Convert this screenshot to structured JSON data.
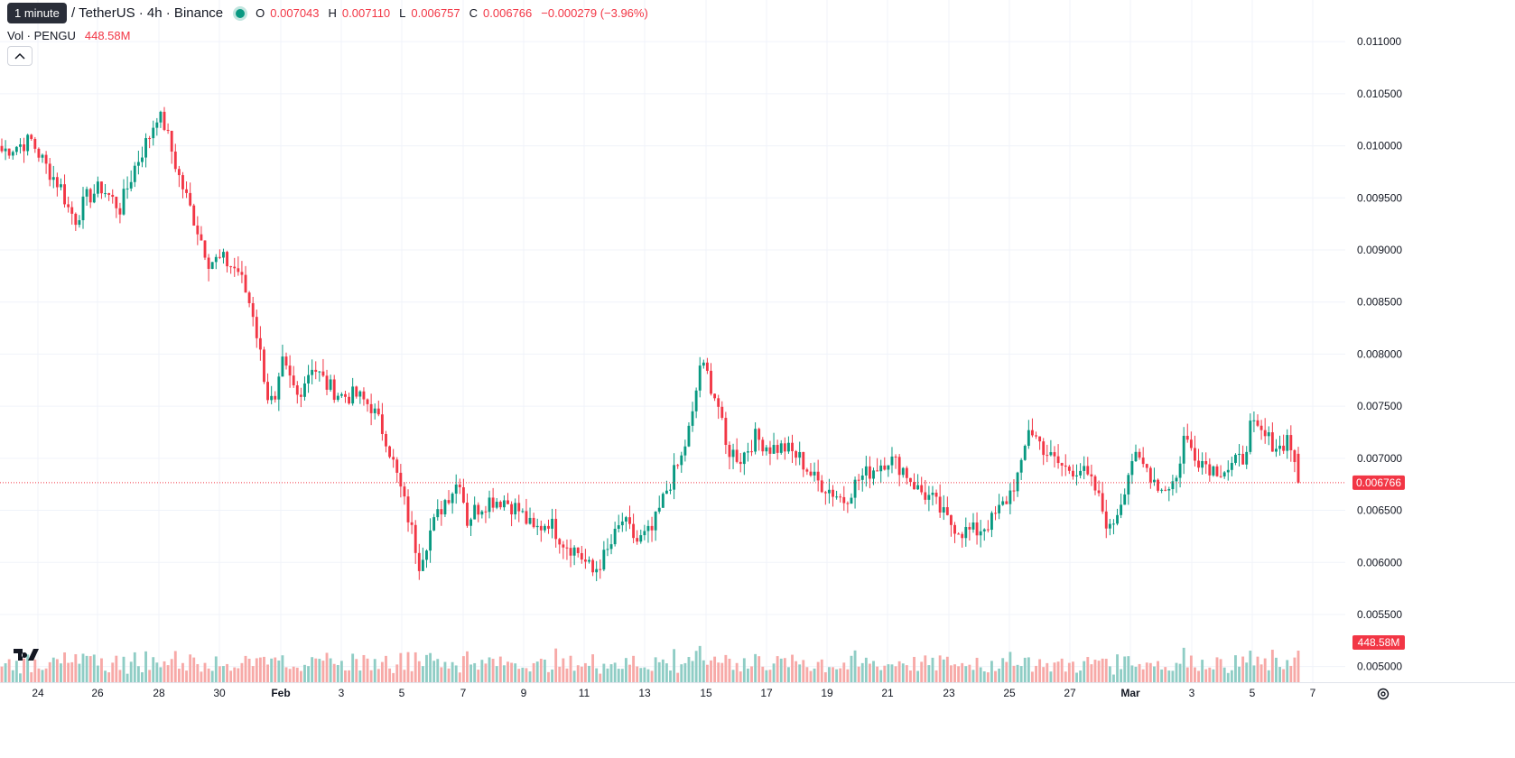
{
  "header": {
    "symbol_title": "U / TetherUS · 4h · Binance",
    "tooltip": "1 minute",
    "ohlc": {
      "o_label": "O",
      "o_value": "0.007043",
      "h_label": "H",
      "h_value": "0.007110",
      "l_label": "L",
      "l_value": "0.006757",
      "c_label": "C",
      "c_value": "0.006766",
      "change": "−0.000279 (−3.96%)"
    },
    "volume_name": "Vol · PENGU",
    "volume_value": "448.58M"
  },
  "price_axis_labels": [
    "0.011000",
    "0.010500",
    "0.010000",
    "0.009500",
    "0.009000",
    "0.008500",
    "0.008000",
    "0.007500",
    "0.007000",
    "0.006500",
    "0.006000",
    "0.005500",
    "0.005000"
  ],
  "last_price_label": "0.006766",
  "last_volume_label": "448.58M",
  "time_axis_labels": [
    "24",
    "26",
    "28",
    "30",
    "Feb",
    "3",
    "5",
    "7",
    "9",
    "11",
    "13",
    "15",
    "17",
    "19",
    "21",
    "23",
    "25",
    "27",
    "Mar",
    "3",
    "5",
    "7"
  ],
  "colors": {
    "up": "#089981",
    "down": "#f23645",
    "up_volume": "#8fcdc5",
    "down_volume": "#f7a9a7",
    "grid": "#f0f3fa"
  },
  "icons": [
    "chevron-up-icon",
    "tradingview-logo-icon",
    "settings-icon"
  ],
  "chart_data": {
    "type": "candlestick",
    "interval": "4h",
    "y_range": [
      0.00485,
      0.0114
    ],
    "volume_share": 0.12,
    "anchors": [
      [
        0,
        0.00995
      ],
      [
        4,
        0.01
      ],
      [
        8,
        0.01005
      ],
      [
        12,
        0.0098
      ],
      [
        16,
        0.0096
      ],
      [
        18,
        0.0094
      ],
      [
        20,
        0.0093
      ],
      [
        23,
        0.0095
      ],
      [
        27,
        0.0096
      ],
      [
        32,
        0.0094
      ],
      [
        36,
        0.0098
      ],
      [
        40,
        0.0101
      ],
      [
        42,
        0.0103
      ],
      [
        44,
        0.0102
      ],
      [
        48,
        0.0097
      ],
      [
        52,
        0.0093
      ],
      [
        56,
        0.0089
      ],
      [
        60,
        0.0089
      ],
      [
        64,
        0.0088
      ],
      [
        68,
        0.0084
      ],
      [
        70,
        0.008
      ],
      [
        72,
        0.0076
      ],
      [
        74,
        0.0075
      ],
      [
        76,
        0.0079
      ],
      [
        80,
        0.0076
      ],
      [
        84,
        0.0079
      ],
      [
        88,
        0.0077
      ],
      [
        92,
        0.0076
      ],
      [
        96,
        0.0076
      ],
      [
        100,
        0.0075
      ],
      [
        104,
        0.0072
      ],
      [
        108,
        0.0067
      ],
      [
        111,
        0.0063
      ],
      [
        113,
        0.006
      ],
      [
        116,
        0.0063
      ],
      [
        120,
        0.0066
      ],
      [
        124,
        0.0068
      ],
      [
        126,
        0.0064
      ],
      [
        128,
        0.0065
      ],
      [
        132,
        0.0066
      ],
      [
        136,
        0.0066
      ],
      [
        140,
        0.0065
      ],
      [
        144,
        0.0063
      ],
      [
        148,
        0.0064
      ],
      [
        152,
        0.0062
      ],
      [
        156,
        0.0061
      ],
      [
        160,
        0.0059
      ],
      [
        164,
        0.0061
      ],
      [
        168,
        0.0064
      ],
      [
        172,
        0.0062
      ],
      [
        176,
        0.0063
      ],
      [
        180,
        0.0067
      ],
      [
        184,
        0.007
      ],
      [
        187,
        0.0074
      ],
      [
        189,
        0.0079
      ],
      [
        191,
        0.0078
      ],
      [
        194,
        0.0075
      ],
      [
        196,
        0.0071
      ],
      [
        200,
        0.007
      ],
      [
        204,
        0.0072
      ],
      [
        208,
        0.0071
      ],
      [
        212,
        0.0071
      ],
      [
        216,
        0.007
      ],
      [
        220,
        0.0068
      ],
      [
        224,
        0.0067
      ],
      [
        228,
        0.0066
      ],
      [
        232,
        0.0068
      ],
      [
        236,
        0.0069
      ],
      [
        240,
        0.007
      ],
      [
        244,
        0.0069
      ],
      [
        248,
        0.0067
      ],
      [
        252,
        0.0066
      ],
      [
        256,
        0.0064
      ],
      [
        260,
        0.0063
      ],
      [
        264,
        0.0063
      ],
      [
        268,
        0.0064
      ],
      [
        272,
        0.0066
      ],
      [
        276,
        0.0069
      ],
      [
        278,
        0.0073
      ],
      [
        280,
        0.0072
      ],
      [
        284,
        0.007
      ],
      [
        288,
        0.0069
      ],
      [
        292,
        0.0069
      ],
      [
        296,
        0.0067
      ],
      [
        300,
        0.0063
      ],
      [
        303,
        0.0066
      ],
      [
        306,
        0.007
      ],
      [
        310,
        0.0069
      ],
      [
        314,
        0.0067
      ],
      [
        318,
        0.0068
      ],
      [
        320,
        0.0072
      ],
      [
        324,
        0.007
      ],
      [
        328,
        0.0069
      ],
      [
        332,
        0.0069
      ],
      [
        336,
        0.007
      ],
      [
        338,
        0.0073
      ],
      [
        342,
        0.0072
      ],
      [
        346,
        0.0071
      ],
      [
        348,
        0.0072
      ],
      [
        350,
        0.007
      ],
      [
        351,
        0.0067
      ]
    ],
    "candle_count": 352,
    "last_candle": {
      "open": 0.007043,
      "high": 0.00711,
      "low": 0.006757,
      "close": 0.006766
    }
  }
}
